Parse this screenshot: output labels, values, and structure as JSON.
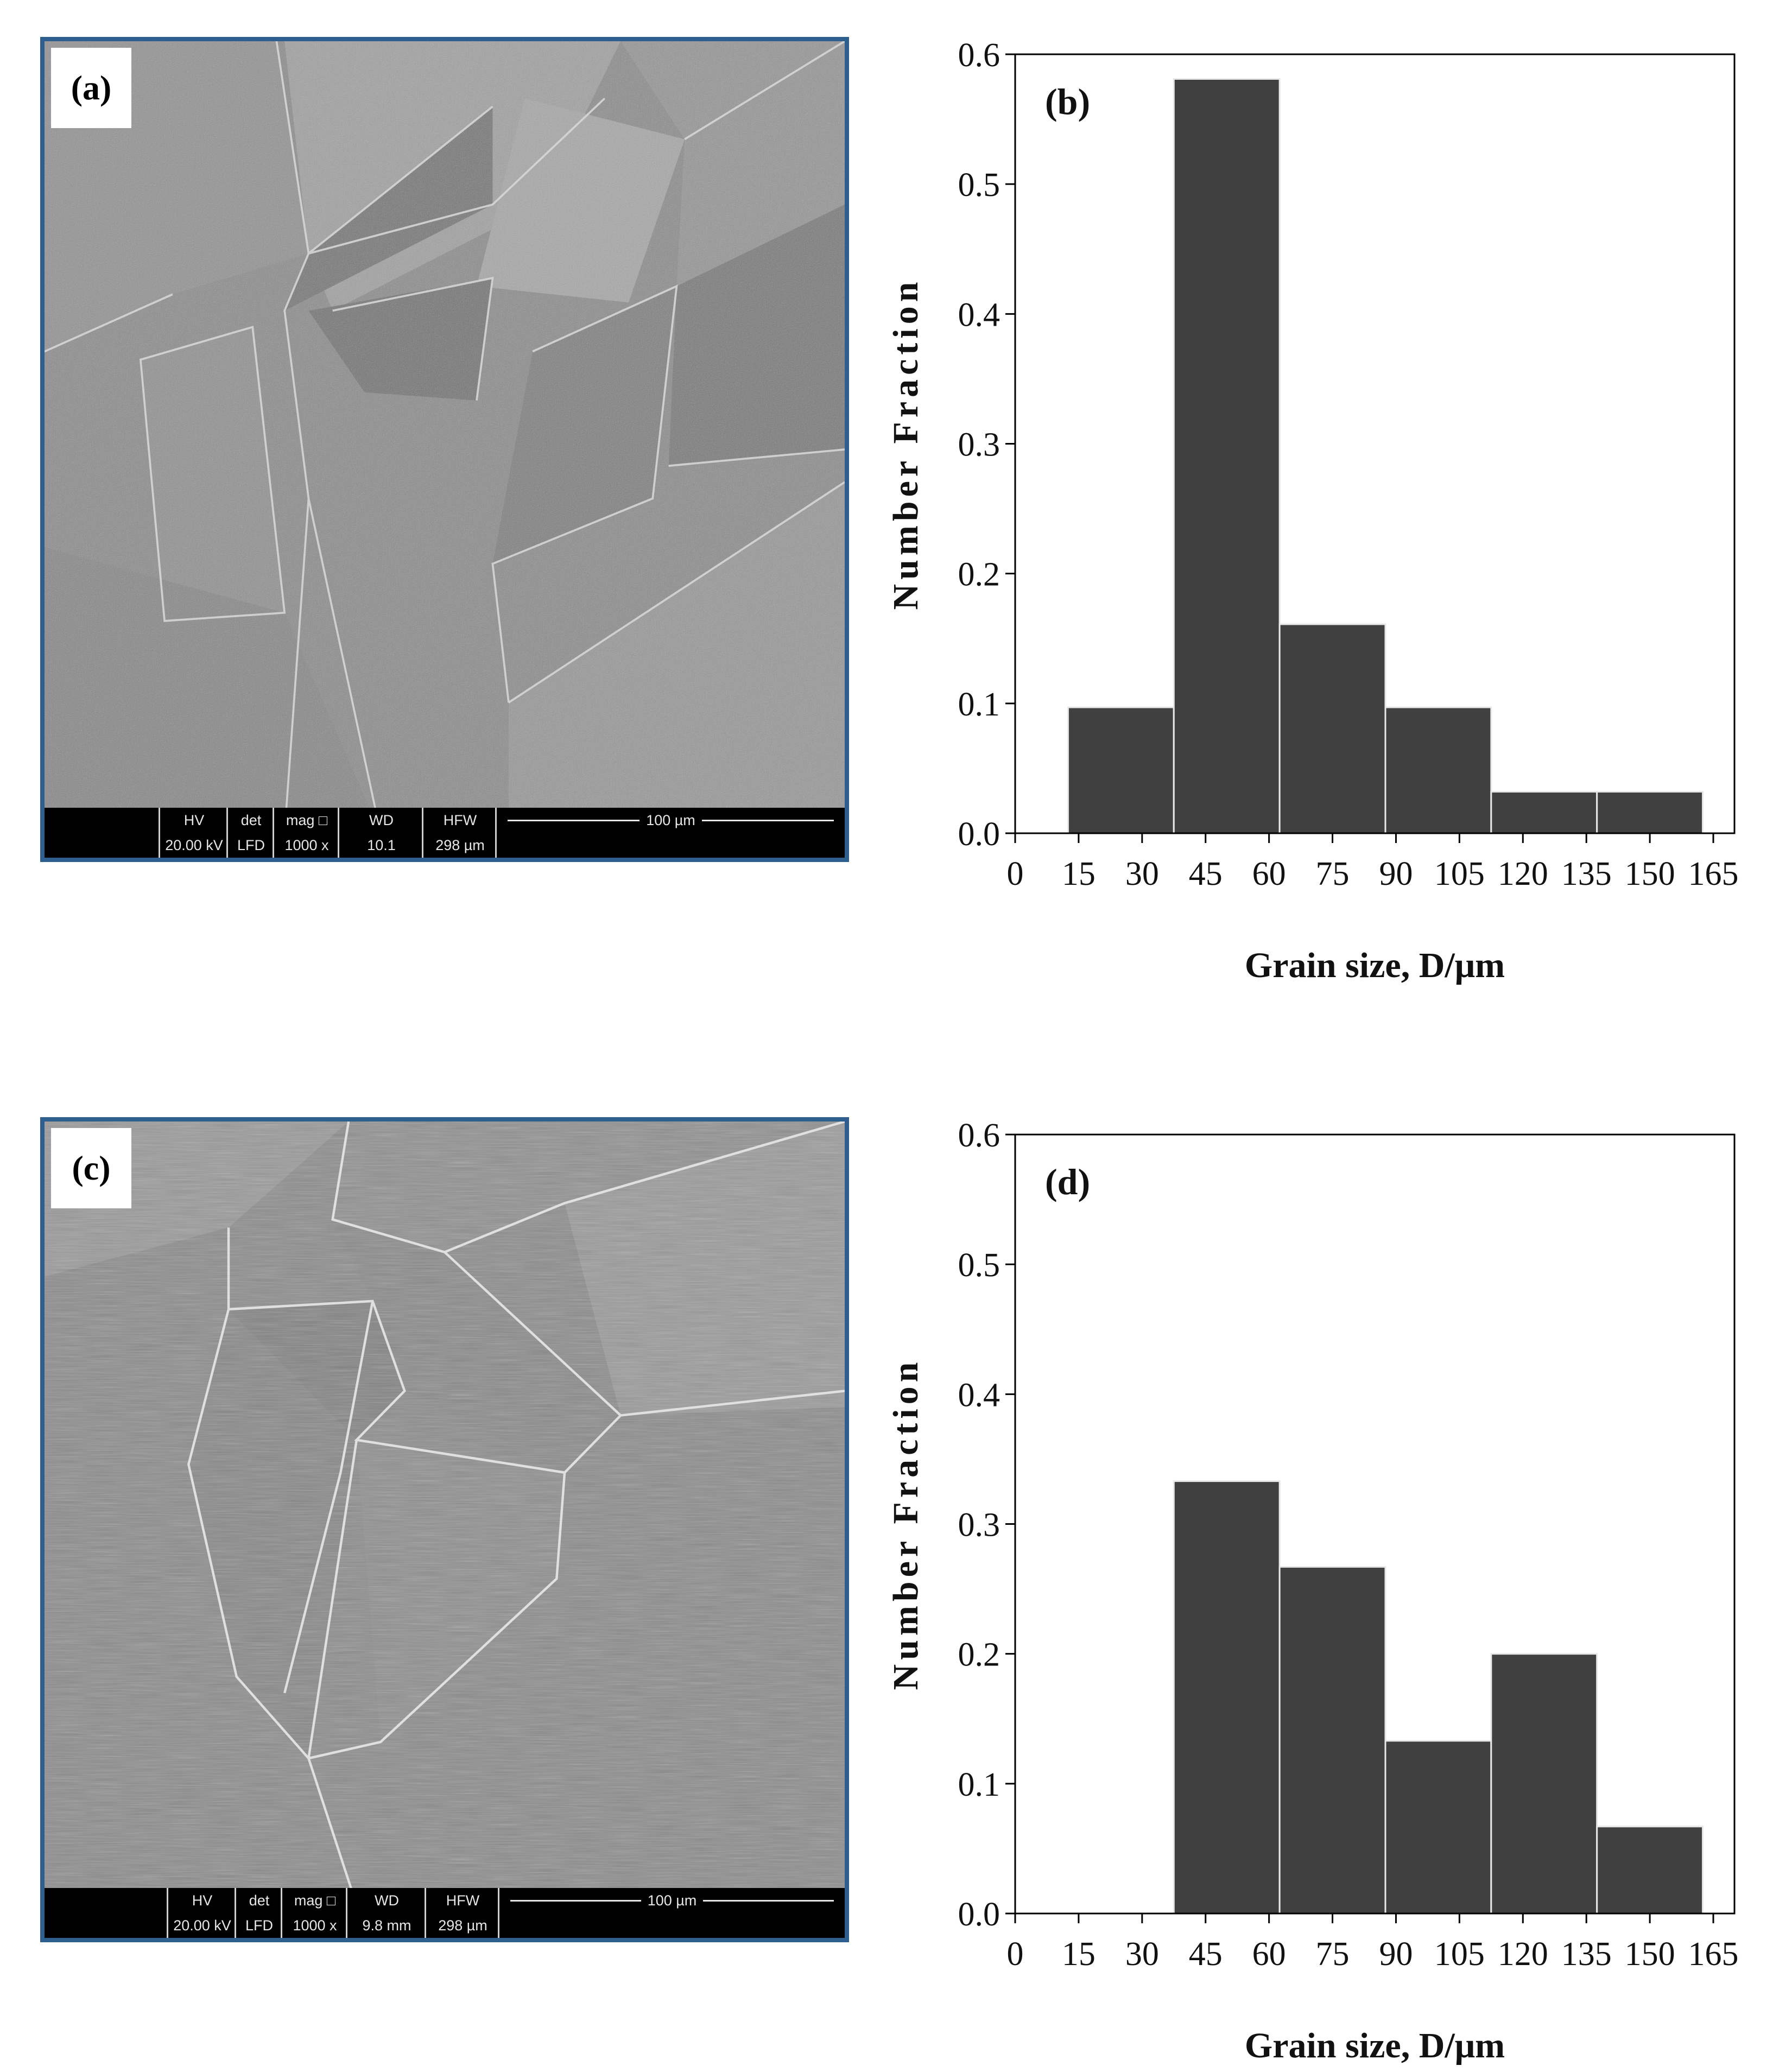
{
  "panels": {
    "a": {
      "letter": "(a)",
      "databar": {
        "headers": [
          "HV",
          "det",
          "mag □",
          "WD",
          "HFW"
        ],
        "values": [
          "20.00 kV",
          "LFD",
          "1000 x",
          "10.1",
          "298 µm"
        ],
        "scale_bar": "100 µm"
      }
    },
    "c": {
      "letter": "(c)",
      "databar": {
        "headers": [
          "HV",
          "det",
          "mag □",
          "WD",
          "HFW"
        ],
        "values": [
          "20.00 kV",
          "LFD",
          "1000 x",
          "9.8 mm",
          "298 µm"
        ],
        "scale_bar": "100 µm"
      }
    }
  },
  "chart_data": [
    {
      "type": "bar",
      "panel_label": "(b)",
      "xlabel": "Grain size, D/μm",
      "ylabel": "Number Fraction",
      "xlim": [
        0,
        170
      ],
      "ylim": [
        0,
        0.6
      ],
      "xticks": [
        0,
        15,
        30,
        45,
        60,
        75,
        90,
        105,
        120,
        135,
        150,
        165
      ],
      "yticks": [
        "0.0",
        "0.1",
        "0.2",
        "0.3",
        "0.4",
        "0.5",
        "0.6"
      ],
      "bins": [
        [
          12.5,
          37.5
        ],
        [
          37.5,
          62.5
        ],
        [
          62.5,
          87.5
        ],
        [
          87.5,
          112.5
        ],
        [
          112.5,
          137.5
        ],
        [
          137.5,
          162.5
        ]
      ],
      "values": [
        0.097,
        0.581,
        0.161,
        0.097,
        0.032,
        0.032
      ],
      "bar_color": "#404040"
    },
    {
      "type": "bar",
      "panel_label": "(d)",
      "xlabel": "Grain size, D/μm",
      "ylabel": "Number Fraction",
      "xlim": [
        0,
        170
      ],
      "ylim": [
        0,
        0.6
      ],
      "xticks": [
        0,
        15,
        30,
        45,
        60,
        75,
        90,
        105,
        120,
        135,
        150,
        165
      ],
      "yticks": [
        "0.0",
        "0.1",
        "0.2",
        "0.3",
        "0.4",
        "0.5",
        "0.6"
      ],
      "bins": [
        [
          37.5,
          62.5
        ],
        [
          62.5,
          87.5
        ],
        [
          87.5,
          112.5
        ],
        [
          112.5,
          137.5
        ],
        [
          137.5,
          162.5
        ]
      ],
      "values": [
        0.333,
        0.267,
        0.133,
        0.2,
        0.067
      ],
      "bar_color": "#404040"
    }
  ]
}
